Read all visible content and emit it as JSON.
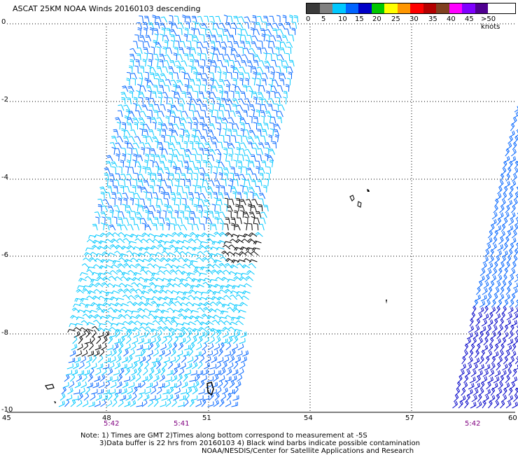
{
  "title": "ASCAT 25KM NOAA Winds 20160103 descending",
  "legend": {
    "labels": [
      "0",
      "5",
      "10",
      "15",
      "20",
      "25",
      "30",
      "35",
      "40",
      "45",
      ">50 knots"
    ],
    "colors": [
      "#3a3a3a",
      "#808080",
      "#00c8ff",
      "#0064ff",
      "#0000c8",
      "#00c800",
      "#ffff00",
      "#ff9600",
      "#ff0000",
      "#b40000",
      "#804020",
      "#ff00ff",
      "#8000ff",
      "#500090"
    ]
  },
  "axes": {
    "lat_labels": [
      "0",
      "-2",
      "-4",
      "-6",
      "-8",
      "-10"
    ],
    "lon_labels": [
      "45",
      "48",
      "51",
      "54",
      "57",
      "60"
    ]
  },
  "pass_times": [
    "5:42",
    "5:41",
    "5:42"
  ],
  "notes": [
    "Note: 1) Times are GMT 2)Times along bottom correspond to measurement at -5S",
    "3)Data buffer is 22 hrs from 20160103 4) Black wind barbs indicate possible contamination",
    "NOAA/NESDIS/Center for Satellite Applications and Research"
  ],
  "swath_colors": {
    "cyan": "#00c8ff",
    "mid_blue": "#0064ff",
    "dark_blue": "#0000c8",
    "contaminated": "#000000"
  }
}
